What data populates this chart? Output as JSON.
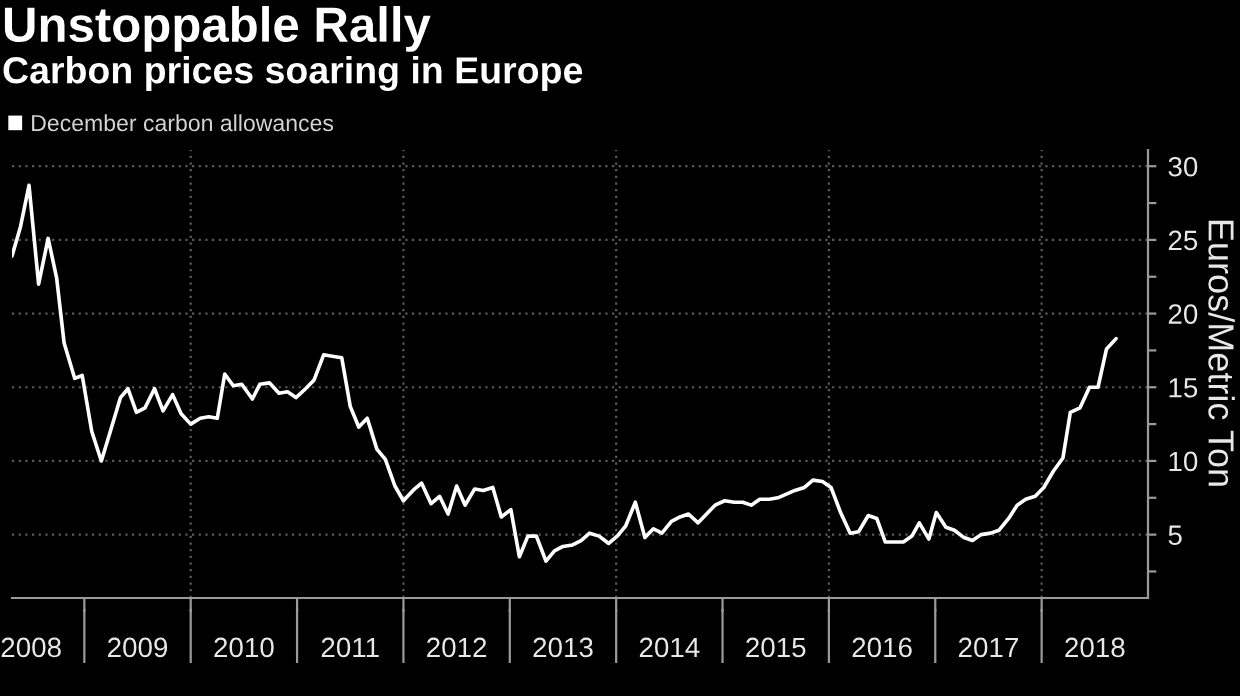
{
  "chart_data": {
    "type": "line",
    "title": "Unstoppable Rally",
    "subtitle": "Carbon prices soaring in Europe",
    "ylabel": "Euros/Metric Ton",
    "x": [
      2008.32,
      2008.4,
      2008.48,
      2008.57,
      2008.66,
      2008.74,
      2008.81,
      2008.91,
      2008.98,
      2009.07,
      2009.16,
      2009.24,
      2009.34,
      2009.41,
      2009.49,
      2009.57,
      2009.66,
      2009.74,
      2009.83,
      2009.91,
      2010.0,
      2010.09,
      2010.17,
      2010.25,
      2010.32,
      2010.4,
      2010.48,
      2010.58,
      2010.65,
      2010.74,
      2010.83,
      2010.91,
      2010.99,
      2011.08,
      2011.16,
      2011.25,
      2011.33,
      2011.42,
      2011.5,
      2011.58,
      2011.66,
      2011.75,
      2011.83,
      2011.92,
      2012.0,
      2012.09,
      2012.17,
      2012.26,
      2012.34,
      2012.42,
      2012.5,
      2012.58,
      2012.67,
      2012.75,
      2012.84,
      2012.92,
      2013.01,
      2013.09,
      2013.17,
      2013.25,
      2013.34,
      2013.42,
      2013.5,
      2013.59,
      2013.67,
      2013.75,
      2013.84,
      2013.93,
      2014.01,
      2014.09,
      2014.18,
      2014.27,
      2014.35,
      2014.43,
      2014.52,
      2014.6,
      2014.68,
      2014.77,
      2014.85,
      2014.93,
      2015.02,
      2015.11,
      2015.19,
      2015.27,
      2015.35,
      2015.44,
      2015.52,
      2015.68,
      2015.77,
      2015.85,
      2015.94,
      2016.02,
      2016.11,
      2016.2,
      2016.28,
      2016.37,
      2016.45,
      2016.53,
      2016.62,
      2016.7,
      2016.78,
      2016.85,
      2016.94,
      2017.01,
      2017.1,
      2017.18,
      2017.27,
      2017.35,
      2017.43,
      2017.52,
      2017.6,
      2017.69,
      2017.77,
      2017.85,
      2017.94,
      2018.02,
      2018.11,
      2018.2,
      2018.27,
      2018.36,
      2018.45,
      2018.53,
      2018.61,
      2018.7
    ],
    "series": [
      {
        "name": "December carbon allowances",
        "color": "#ffffff",
        "values": [
          23.9,
          25.9,
          28.7,
          22.0,
          25.1,
          22.4,
          18.0,
          15.6,
          15.8,
          12.0,
          10.0,
          11.9,
          14.3,
          14.9,
          13.3,
          13.6,
          14.9,
          13.4,
          14.5,
          13.2,
          12.5,
          12.9,
          13.0,
          12.9,
          15.9,
          15.1,
          15.2,
          14.2,
          15.2,
          15.3,
          14.6,
          14.7,
          14.3,
          14.9,
          15.5,
          17.2,
          17.1,
          17.0,
          13.7,
          12.3,
          12.9,
          10.8,
          10.1,
          8.3,
          7.3,
          8.0,
          8.5,
          7.1,
          7.6,
          6.4,
          8.3,
          7.0,
          8.1,
          8.0,
          8.2,
          6.2,
          6.7,
          3.5,
          4.9,
          4.9,
          3.2,
          3.9,
          4.2,
          4.3,
          4.6,
          5.1,
          4.9,
          4.4,
          4.9,
          5.6,
          7.2,
          4.8,
          5.4,
          5.1,
          5.9,
          6.2,
          6.4,
          5.8,
          6.4,
          7.0,
          7.3,
          7.2,
          7.2,
          7.0,
          7.4,
          7.4,
          7.5,
          8.0,
          8.2,
          8.7,
          8.6,
          8.2,
          6.5,
          5.1,
          5.2,
          6.3,
          6.1,
          4.5,
          4.5,
          4.5,
          4.9,
          5.8,
          4.7,
          6.5,
          5.5,
          5.3,
          4.8,
          4.6,
          5.0,
          5.1,
          5.3,
          6.1,
          7.0,
          7.4,
          7.6,
          8.2,
          9.3,
          10.2,
          13.3,
          13.6,
          15.0,
          15.0,
          17.6,
          18.3
        ]
      }
    ],
    "xlim": [
      2008.32,
      2019
    ],
    "xticks": [
      {
        "value": 2008.5,
        "label": "2008"
      },
      {
        "value": 2009,
        "label": null
      },
      {
        "value": 2009.5,
        "label": "2009"
      },
      {
        "value": 2010,
        "label": null
      },
      {
        "value": 2010.5,
        "label": "2010"
      },
      {
        "value": 2011,
        "label": null
      },
      {
        "value": 2011.5,
        "label": "2011"
      },
      {
        "value": 2012,
        "label": null
      },
      {
        "value": 2012.5,
        "label": "2012"
      },
      {
        "value": 2013,
        "label": null
      },
      {
        "value": 2013.5,
        "label": "2013"
      },
      {
        "value": 2014,
        "label": null
      },
      {
        "value": 2014.5,
        "label": "2014"
      },
      {
        "value": 2015,
        "label": null
      },
      {
        "value": 2015.5,
        "label": "2015"
      },
      {
        "value": 2016,
        "label": null
      },
      {
        "value": 2016.5,
        "label": "2016"
      },
      {
        "value": 2017,
        "label": null
      },
      {
        "value": 2017.5,
        "label": "2017"
      },
      {
        "value": 2018,
        "label": null
      },
      {
        "value": 2018.5,
        "label": "2018"
      }
    ],
    "ylim": [
      0.7,
      31.1
    ],
    "yticks": [
      {
        "value": 2.5,
        "label": null
      },
      5,
      {
        "value": 7.5,
        "label": null
      },
      10,
      {
        "value": 12.5,
        "label": null
      },
      15,
      {
        "value": 17.5,
        "label": null
      },
      20,
      {
        "value": 22.5,
        "label": null
      },
      25,
      {
        "value": 27.5,
        "label": null
      },
      30
    ],
    "grid": true,
    "legend": "top left"
  }
}
